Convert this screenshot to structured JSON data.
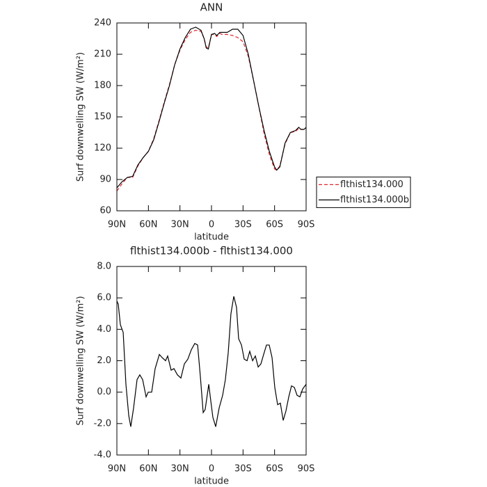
{
  "chart_data": [
    {
      "type": "line",
      "title": "ANN",
      "xlabel": "latitude",
      "ylabel": "Surf downwelling SW (W/m²)",
      "x": [
        90,
        85,
        80,
        75,
        70,
        65,
        60,
        55,
        50,
        45,
        40,
        35,
        30,
        25,
        20,
        15,
        10,
        7,
        5,
        3,
        0,
        -3,
        -5,
        -8,
        -10,
        -15,
        -20,
        -25,
        -30,
        -35,
        -40,
        -45,
        -50,
        -55,
        -60,
        -62,
        -65,
        -70,
        -75,
        -80,
        -83,
        -85,
        -88,
        -90
      ],
      "series": [
        {
          "name": "flthist134.000",
          "color": "#e0262c",
          "style": "dashed",
          "values": [
            79,
            86,
            92,
            92,
            103,
            111,
            117,
            129,
            146,
            164,
            181,
            200,
            214,
            224,
            231,
            233,
            232,
            225,
            217,
            216,
            229,
            229,
            227,
            230,
            229,
            229,
            228,
            226,
            222,
            208,
            185,
            160,
            134,
            114,
            100,
            99,
            103,
            124,
            135,
            136,
            139,
            138,
            138,
            139
          ]
        },
        {
          "name": "flthist134.000b",
          "color": "#000000",
          "style": "solid",
          "values": [
            82,
            88,
            92,
            93,
            104,
            111,
            117,
            128,
            145,
            163,
            180,
            200,
            215,
            226,
            234,
            236,
            233,
            225,
            216,
            215,
            229,
            230,
            228,
            231,
            231,
            231,
            234,
            234,
            228,
            210,
            185,
            160,
            137,
            117,
            102,
            99,
            102,
            125,
            135,
            137,
            140,
            138,
            138,
            140
          ]
        }
      ],
      "xlim": [
        90,
        -90
      ],
      "xticks": [
        {
          "value": 90,
          "label": "90N"
        },
        {
          "value": 60,
          "label": "60N"
        },
        {
          "value": 30,
          "label": "30N"
        },
        0,
        {
          "value": -30,
          "label": "30S"
        },
        {
          "value": -60,
          "label": "60S"
        },
        {
          "value": -90,
          "label": "90S"
        }
      ],
      "ylim": [
        60,
        240
      ],
      "yticks": [
        60,
        90,
        120,
        150,
        180,
        210,
        240
      ],
      "legend": "right"
    },
    {
      "type": "line",
      "title": "flthist134.000b - flthist134.000",
      "xlabel": "latitude",
      "ylabel": "Surf downwelling SW (W/m²)",
      "x": [
        90,
        88.7,
        86.7,
        84,
        81.4,
        78.7,
        76.8,
        74.1,
        70.8,
        68.2,
        65.5,
        62.2,
        60.2,
        56.9,
        53.6,
        49.6,
        47,
        43.7,
        41.7,
        38.4,
        35.7,
        32.4,
        29.1,
        25.8,
        22.5,
        19.2,
        15.9,
        13.2,
        10.6,
        7.9,
        6,
        2.6,
        0.6,
        -1.3,
        -4,
        -7.3,
        -10.6,
        -13.2,
        -15.9,
        -18.5,
        -21.2,
        -23.8,
        -25.8,
        -28.5,
        -31.1,
        -33.8,
        -36.4,
        -39.1,
        -41.7,
        -44.4,
        -47,
        -49.6,
        -52.3,
        -54.9,
        -57.6,
        -60.2,
        -62.9,
        -65.5,
        -68.2,
        -70.8,
        -73.5,
        -76.1,
        -78.8,
        -81.4,
        -84.1,
        -86.7,
        -90
      ],
      "series": [
        {
          "color": "#000000",
          "style": "solid",
          "values": [
            5.8,
            5.6,
            4.3,
            3.8,
            0.5,
            -1.5,
            -2.2,
            -1.0,
            0.8,
            1.1,
            0.8,
            -0.3,
            0,
            0,
            1.5,
            2.4,
            2.2,
            2.0,
            2.3,
            1.4,
            1.5,
            1.1,
            0.9,
            1.8,
            2.1,
            2.7,
            3.1,
            3.0,
            1.0,
            -1.3,
            -1.1,
            0.5,
            -0.6,
            -1.6,
            -2.2,
            -1.0,
            -0.2,
            0.8,
            2.5,
            5.0,
            6.1,
            5.4,
            3.4,
            3.0,
            2.1,
            2.0,
            2.6,
            2.0,
            2.3,
            1.6,
            1.8,
            2.4,
            3.0,
            3.0,
            2.2,
            0.3,
            -0.8,
            -0.7,
            -1.8,
            -1.2,
            -0.3,
            0.4,
            0.3,
            -0.2,
            -0.3,
            0.2,
            0.5
          ]
        }
      ],
      "xlim": [
        90,
        -90
      ],
      "xticks": [
        {
          "value": 90,
          "label": "90N"
        },
        {
          "value": 60,
          "label": "60N"
        },
        {
          "value": 30,
          "label": "30N"
        },
        0,
        {
          "value": -30,
          "label": "30S"
        },
        {
          "value": -60,
          "label": "60S"
        },
        {
          "value": -90,
          "label": "90S"
        }
      ],
      "ylim": [
        -4,
        8
      ],
      "yticks": [
        {
          "value": -4,
          "label": "-4.0"
        },
        {
          "value": -2,
          "label": "-2.0"
        },
        {
          "value": 0,
          "label": "0.0"
        },
        {
          "value": 2,
          "label": "2.0"
        },
        {
          "value": 4,
          "label": "4.0"
        },
        {
          "value": 6,
          "label": "6.0"
        },
        {
          "value": 8,
          "label": "8.0"
        }
      ]
    }
  ]
}
